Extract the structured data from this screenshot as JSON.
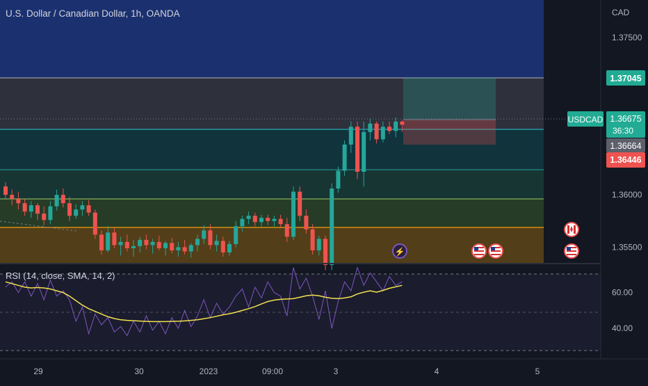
{
  "header": {
    "symbol_title": "U.S. Dollar / Canadian Dollar, 1h, OANDA"
  },
  "price_axis": {
    "currency": "CAD",
    "ticks": [
      "1.37500",
      "1.36000",
      "1.35500"
    ],
    "tick_values": [
      1.375,
      1.36,
      1.355
    ],
    "ylim": [
      1.3535,
      1.3786
    ]
  },
  "badges": {
    "level_top": "1.37045",
    "symbol": "USDCAD",
    "last_price": "1.36675",
    "countdown": "36:30",
    "level_mid": "1.36664",
    "level_red": "1.36446"
  },
  "rsi": {
    "label": "RSI (14, close, SMA, 14, 2)",
    "ticks": [
      "60.00",
      "40.00"
    ],
    "tick_values": [
      60,
      40
    ],
    "ylim": [
      23,
      75
    ],
    "rsi_values": [
      63,
      66,
      60,
      66,
      58,
      65,
      56,
      67,
      58,
      61,
      56,
      44,
      52,
      37,
      48,
      42,
      46,
      38,
      41,
      36,
      44,
      38,
      47,
      39,
      44,
      37,
      46,
      40,
      50,
      41,
      47,
      56,
      46,
      54,
      48,
      52,
      58,
      62,
      52,
      63,
      57,
      66,
      60,
      58,
      47,
      74,
      62,
      68,
      58,
      45,
      61,
      40,
      55,
      66,
      61,
      74,
      64,
      71,
      66,
      61,
      69,
      64,
      66
    ],
    "sma_values": [
      66,
      65,
      64,
      63,
      62.6,
      62.8,
      62.6,
      62,
      61,
      60,
      58,
      55.5,
      53,
      51,
      49.5,
      48,
      46.5,
      45.5,
      44.8,
      44.5,
      44.3,
      44.1,
      43.9,
      43.8,
      43.8,
      43.8,
      43.9,
      44,
      44.2,
      44.5,
      44.8,
      45.4,
      46,
      46.8,
      47.6,
      48.2,
      49,
      50,
      51,
      52.2,
      53.6,
      55,
      55.8,
      56.2,
      56.4,
      56.6,
      57.4,
      58.2,
      58.6,
      58.2,
      57.4,
      56.8,
      56.6,
      57,
      57.6,
      59.2,
      60.2,
      61,
      60.2,
      61.2,
      62.4,
      63.2,
      64
    ]
  },
  "time_axis": {
    "labels": [
      "29",
      "30",
      "2023",
      "09:00",
      "3",
      "4",
      "5"
    ]
  },
  "events": {
    "lightning": "⚡"
  },
  "colors": {
    "up": "#26a69a",
    "down": "#ef5350",
    "rsi": "#7e57c2",
    "sma": "#f3e14e",
    "zone_blue": "#1f3a8a",
    "teal_box": "#26a69a",
    "red_box": "#ef5350",
    "orange": "#f59e0b",
    "badge_teal": "#22ab94",
    "badge_grey": "#5d606b"
  },
  "chart_data": {
    "type": "candlestick",
    "title": "U.S. Dollar / Canadian Dollar, 1h, OANDA",
    "ylim": [
      1.3535,
      1.3786
    ],
    "series": [
      {
        "name": "USDCAD",
        "ohlc": [
          [
            1.3608,
            1.3612,
            1.3596,
            1.36
          ],
          [
            1.36,
            1.3605,
            1.359,
            1.3596
          ],
          [
            1.3596,
            1.3603,
            1.3586,
            1.3592
          ],
          [
            1.3592,
            1.3596,
            1.358,
            1.3584
          ],
          [
            1.3584,
            1.3594,
            1.3578,
            1.359
          ],
          [
            1.359,
            1.3592,
            1.3576,
            1.3582
          ],
          [
            1.3582,
            1.3589,
            1.3571,
            1.3576
          ],
          [
            1.3576,
            1.3594,
            1.3572,
            1.3589
          ],
          [
            1.3589,
            1.3605,
            1.3585,
            1.36
          ],
          [
            1.36,
            1.3606,
            1.3588,
            1.3592
          ],
          [
            1.3592,
            1.3598,
            1.3575,
            1.358
          ],
          [
            1.358,
            1.3591,
            1.3577,
            1.3586
          ],
          [
            1.3586,
            1.3594,
            1.358,
            1.359
          ],
          [
            1.359,
            1.3595,
            1.358,
            1.3583
          ],
          [
            1.3583,
            1.3586,
            1.3558,
            1.3562
          ],
          [
            1.3562,
            1.3566,
            1.3543,
            1.3547
          ],
          [
            1.3547,
            1.357,
            1.3545,
            1.3564
          ],
          [
            1.3564,
            1.3568,
            1.3549,
            1.3552
          ],
          [
            1.3552,
            1.356,
            1.3542,
            1.3555
          ],
          [
            1.3555,
            1.3562,
            1.3546,
            1.3549
          ],
          [
            1.3549,
            1.3557,
            1.3541,
            1.3551
          ],
          [
            1.3551,
            1.356,
            1.3545,
            1.3557
          ],
          [
            1.3557,
            1.3562,
            1.3548,
            1.3552
          ],
          [
            1.3552,
            1.3558,
            1.3544,
            1.3555
          ],
          [
            1.3555,
            1.3561,
            1.3547,
            1.3549
          ],
          [
            1.3549,
            1.3556,
            1.3542,
            1.3554
          ],
          [
            1.3554,
            1.3559,
            1.3544,
            1.3547
          ],
          [
            1.3547,
            1.3555,
            1.3541,
            1.355
          ],
          [
            1.355,
            1.3557,
            1.3543,
            1.3546
          ],
          [
            1.3546,
            1.3554,
            1.354,
            1.3552
          ],
          [
            1.3552,
            1.3562,
            1.3546,
            1.3558
          ],
          [
            1.3558,
            1.3571,
            1.3553,
            1.3566
          ],
          [
            1.3566,
            1.3572,
            1.3548,
            1.3552
          ],
          [
            1.3552,
            1.3562,
            1.3546,
            1.3556
          ],
          [
            1.3556,
            1.356,
            1.3541,
            1.3545
          ],
          [
            1.3545,
            1.3556,
            1.3542,
            1.3553
          ],
          [
            1.3553,
            1.3575,
            1.355,
            1.357
          ],
          [
            1.357,
            1.358,
            1.3565,
            1.3577
          ],
          [
            1.3577,
            1.3584,
            1.3572,
            1.358
          ],
          [
            1.358,
            1.3583,
            1.357,
            1.3574
          ],
          [
            1.3574,
            1.3581,
            1.357,
            1.3578
          ],
          [
            1.3578,
            1.3581,
            1.3571,
            1.3575
          ],
          [
            1.3575,
            1.358,
            1.357,
            1.3577
          ],
          [
            1.3577,
            1.3581,
            1.3569,
            1.3572
          ],
          [
            1.3572,
            1.3578,
            1.3555,
            1.356
          ],
          [
            1.356,
            1.3608,
            1.3557,
            1.3603
          ],
          [
            1.3603,
            1.3608,
            1.3575,
            1.358
          ],
          [
            1.358,
            1.3586,
            1.3563,
            1.3567
          ],
          [
            1.3567,
            1.3572,
            1.3543,
            1.3547
          ],
          [
            1.3547,
            1.3561,
            1.3542,
            1.3558
          ],
          [
            1.3558,
            1.3561,
            1.3528,
            1.3533
          ],
          [
            1.3533,
            1.3611,
            1.3528,
            1.3606
          ],
          [
            1.3606,
            1.3627,
            1.3602,
            1.3623
          ],
          [
            1.3623,
            1.3652,
            1.3618,
            1.3648
          ],
          [
            1.3648,
            1.367,
            1.364,
            1.3665
          ],
          [
            1.3665,
            1.367,
            1.3615,
            1.3622
          ],
          [
            1.3622,
            1.367,
            1.3608,
            1.366
          ],
          [
            1.366,
            1.3673,
            1.3652,
            1.3668
          ],
          [
            1.3668,
            1.367,
            1.3649,
            1.3653
          ],
          [
            1.3653,
            1.367,
            1.365,
            1.3665
          ],
          [
            1.3665,
            1.367,
            1.3658,
            1.3661
          ],
          [
            1.3661,
            1.3674,
            1.3655,
            1.367
          ],
          [
            1.367,
            1.3671,
            1.366,
            1.3667
          ]
        ]
      }
    ]
  }
}
